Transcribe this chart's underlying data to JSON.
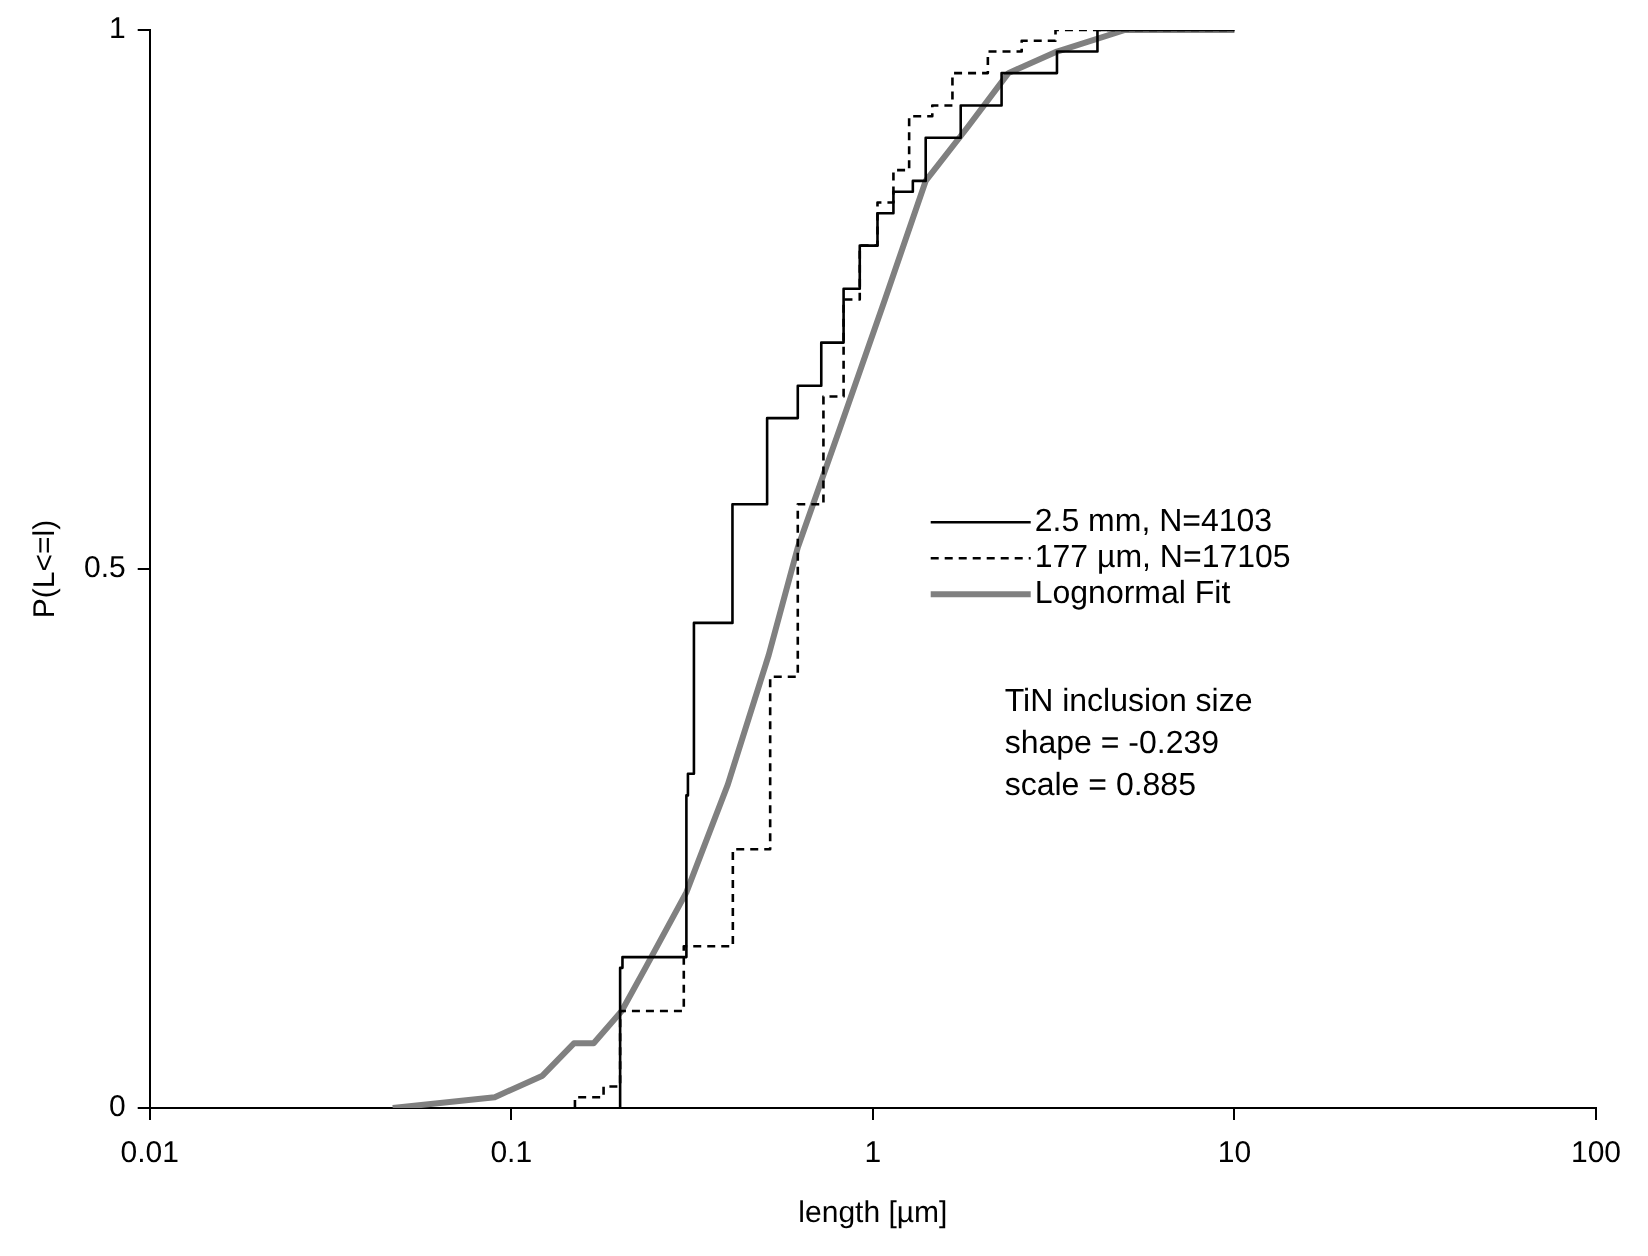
{
  "chart_data": {
    "type": "step",
    "xlabel": "length [µm]",
    "ylabel": "P(L<=l)",
    "log": "x",
    "xlim": [
      0.01,
      100
    ],
    "xticks": [
      0.01,
      0.1,
      1,
      10,
      100
    ],
    "ylim": [
      0,
      1
    ],
    "yticks": [
      0,
      0.5,
      1
    ],
    "grid": false,
    "legend": "right",
    "marker": "none",
    "annotations": [
      "TiN inclusion size",
      "shape = -0.239",
      "scale = 0.885"
    ],
    "series": [
      {
        "name": "2.5 mm, N=4103",
        "type": "step",
        "color": "#000000",
        "line_style": "solid",
        "x": [
          0.2,
          0.203,
          0.305,
          0.308,
          0.32,
          0.409,
          0.51,
          0.62,
          0.72,
          0.83,
          0.92,
          1.03,
          1.14,
          1.29,
          1.4,
          1.75,
          2.27,
          3.23,
          4.18,
          5.7,
          10
        ],
        "values": [
          0,
          0.13,
          0.14,
          0.29,
          0.31,
          0.45,
          0.56,
          0.64,
          0.67,
          0.71,
          0.76,
          0.8,
          0.83,
          0.85,
          0.86,
          0.9,
          0.93,
          0.96,
          0.98,
          1,
          1
        ]
      },
      {
        "name": "177 µm, N=17105",
        "type": "step",
        "color": "#000000",
        "line_style": "dashed",
        "x": [
          0.15,
          0.18,
          0.2,
          0.3,
          0.41,
          0.52,
          0.62,
          0.73,
          0.83,
          0.92,
          1.03,
          1.14,
          1.26,
          1.46,
          1.66,
          2.08,
          2.58,
          3.2,
          4.2,
          10
        ],
        "values": [
          0,
          0.01,
          0.02,
          0.09,
          0.15,
          0.24,
          0.4,
          0.56,
          0.66,
          0.75,
          0.8,
          0.84,
          0.87,
          0.92,
          0.93,
          0.96,
          0.98,
          0.99,
          1,
          1
        ]
      },
      {
        "name": "Lognormal Fit",
        "type": "line",
        "color": "#808080",
        "line_style": "solid",
        "x": [
          0.047,
          0.09,
          0.122,
          0.149,
          0.169,
          0.202,
          0.235,
          0.305,
          0.397,
          0.515,
          0.62,
          0.81,
          1.08,
          1.4,
          1.83,
          2.37,
          3.23,
          4.98,
          7.7,
          10
        ],
        "values": [
          0,
          0.01,
          0.03,
          0.06,
          0.06,
          0.09,
          0.13,
          0.2,
          0.3,
          0.42,
          0.52,
          0.63,
          0.75,
          0.86,
          0.91,
          0.96,
          0.98,
          1,
          1,
          1
        ]
      }
    ]
  }
}
